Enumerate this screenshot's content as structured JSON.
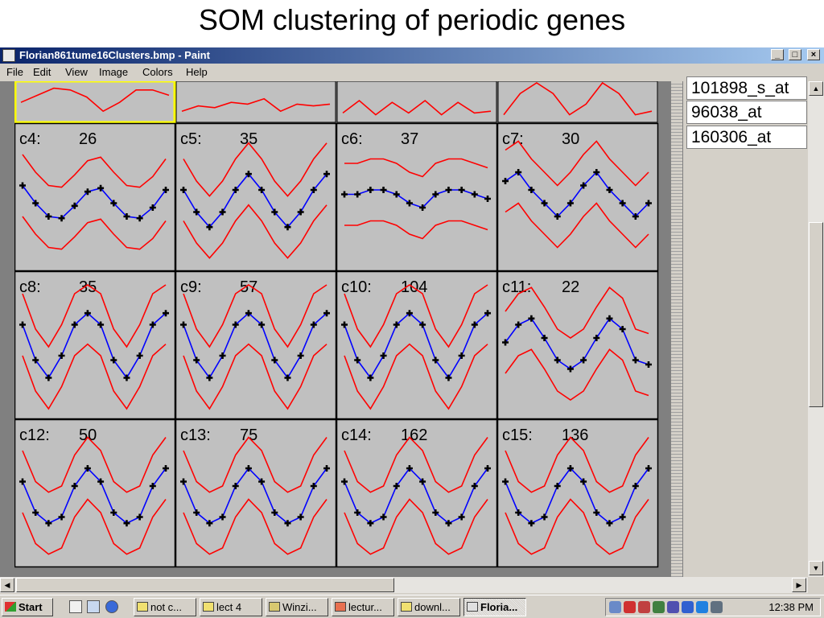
{
  "slide": {
    "title": "SOM clustering of periodic genes"
  },
  "window": {
    "title": "Florian861tume16Clusters.bmp - Paint",
    "buttons": {
      "minimize": "_",
      "maximize": "□",
      "close": "×"
    },
    "menu": [
      "File",
      "Edit",
      "View",
      "Image",
      "Colors",
      "Help"
    ]
  },
  "clusters": [
    {
      "name": "c4:",
      "count": "26"
    },
    {
      "name": "c5:",
      "count": "35"
    },
    {
      "name": "c6:",
      "count": "37"
    },
    {
      "name": "c7:",
      "count": "30"
    },
    {
      "name": "c8:",
      "count": "35"
    },
    {
      "name": "c9:",
      "count": "57"
    },
    {
      "name": "c10:",
      "count": "104"
    },
    {
      "name": "c11:",
      "count": "22"
    },
    {
      "name": "c12:",
      "count": "50"
    },
    {
      "name": "c13:",
      "count": "75"
    },
    {
      "name": "c14:",
      "count": "162"
    },
    {
      "name": "c15:",
      "count": "136"
    }
  ],
  "colors": {
    "mean": "#0000ff",
    "bounds": "#ff0000",
    "marker": "#000000",
    "cell_bg": "#c0c0c0",
    "selected": "#ffff00"
  },
  "side_panel": {
    "items": [
      "101898_s_at",
      "96038_at",
      "160306_at"
    ]
  },
  "taskbar": {
    "start": "Start",
    "tasks": [
      "not c...",
      "lect 4",
      "Winzi...",
      "lectur...",
      "downl...",
      "Floria..."
    ],
    "clock": "12:38 PM"
  }
}
